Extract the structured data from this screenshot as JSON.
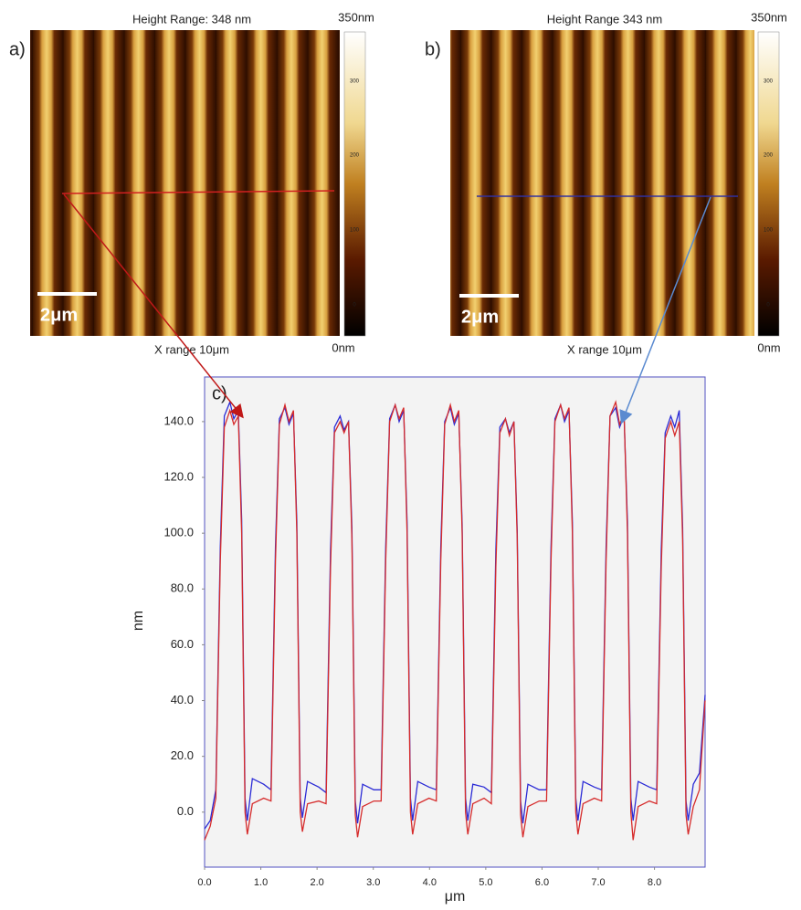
{
  "figures": [
    {
      "label": "a)",
      "title": "Height Range: 348 nm",
      "scale_bar": "2μm",
      "x_range": "X range 10μm",
      "colorbar_top": "350nm",
      "colorbar_bottom": "0nm",
      "colorbar_ticks": [
        "300",
        "200",
        "100",
        "0"
      ]
    },
    {
      "label": "b)",
      "title": "Height Range 343 nm",
      "scale_bar": "2μm",
      "x_range": "X range 10μm",
      "colorbar_top": "350nm",
      "colorbar_bottom": "0nm",
      "colorbar_ticks": [
        "300",
        "200",
        "100",
        "0"
      ]
    }
  ],
  "chart_data": {
    "type": "line",
    "panel_label": "c)",
    "x_label": "μm",
    "y_label": "nm",
    "x": [
      0,
      0.1,
      0.2,
      0.28,
      0.35,
      0.45,
      0.52,
      0.6,
      0.66,
      0.72,
      0.76,
      0.85,
      1.05,
      1.18,
      1.26,
      1.33,
      1.43,
      1.5,
      1.58,
      1.64,
      1.7,
      1.74,
      1.83,
      2.03,
      2.16,
      2.24,
      2.31,
      2.41,
      2.48,
      2.56,
      2.62,
      2.68,
      2.72,
      2.81,
      3.01,
      3.14,
      3.22,
      3.29,
      3.39,
      3.46,
      3.54,
      3.6,
      3.66,
      3.7,
      3.79,
      3.99,
      4.12,
      4.2,
      4.27,
      4.37,
      4.44,
      4.52,
      4.58,
      4.64,
      4.68,
      4.77,
      4.97,
      5.1,
      5.18,
      5.25,
      5.35,
      5.42,
      5.5,
      5.56,
      5.62,
      5.66,
      5.75,
      5.95,
      6.08,
      6.16,
      6.23,
      6.33,
      6.4,
      6.48,
      6.54,
      6.6,
      6.64,
      6.73,
      6.93,
      7.06,
      7.14,
      7.21,
      7.31,
      7.38,
      7.46,
      7.52,
      7.58,
      7.62,
      7.71,
      7.91,
      8.04,
      8.12,
      8.19,
      8.29,
      8.36,
      8.44,
      8.5,
      8.56,
      8.6,
      8.69,
      8.8,
      8.9
    ],
    "series": [
      {
        "name": "b",
        "color": "#2b2bd6",
        "values": [
          -6,
          -3,
          8,
          95,
          142,
          147,
          141,
          144,
          105,
          5,
          -3,
          12,
          10,
          8,
          95,
          141,
          145,
          139,
          143,
          104,
          5,
          -2,
          11,
          9,
          7,
          94,
          138,
          142,
          137,
          140,
          102,
          4,
          -4,
          10,
          8,
          8,
          95,
          141,
          146,
          140,
          144,
          104,
          5,
          -3,
          11,
          9,
          8,
          95,
          140,
          145,
          139,
          143,
          103,
          5,
          -3,
          10,
          9,
          7,
          94,
          138,
          141,
          136,
          140,
          101,
          4,
          -4,
          10,
          8,
          8,
          95,
          141,
          146,
          140,
          144,
          104,
          5,
          -3,
          11,
          9,
          8,
          95,
          142,
          145,
          138,
          142,
          104,
          5,
          -3,
          11,
          9,
          8,
          94,
          136,
          142,
          138,
          144,
          102,
          4,
          -3,
          10,
          14,
          42
        ]
      },
      {
        "name": "a",
        "color": "#d62b2b",
        "values": [
          -10,
          -5,
          5,
          90,
          138,
          144,
          139,
          142,
          100,
          0,
          -8,
          3,
          5,
          4,
          90,
          139,
          146,
          140,
          144,
          100,
          0,
          -7,
          3,
          4,
          3,
          88,
          136,
          140,
          136,
          140,
          98,
          -1,
          -9,
          2,
          4,
          4,
          90,
          140,
          146,
          141,
          145,
          100,
          0,
          -8,
          3,
          5,
          4,
          90,
          139,
          146,
          140,
          144,
          100,
          0,
          -8,
          3,
          5,
          3,
          88,
          136,
          141,
          135,
          140,
          98,
          -1,
          -9,
          2,
          4,
          4,
          90,
          140,
          146,
          141,
          145,
          100,
          0,
          -8,
          3,
          5,
          4,
          90,
          142,
          147,
          139,
          143,
          100,
          0,
          -10,
          2,
          4,
          3,
          88,
          134,
          140,
          135,
          140,
          98,
          -1,
          -8,
          2,
          8,
          40
        ]
      }
    ],
    "xlim": [
      0,
      8.9
    ],
    "ylim": [
      -19.7,
      156
    ],
    "xticks": [
      {
        "value": 0,
        "label": "0.0"
      },
      {
        "value": 1,
        "label": "1.0"
      },
      {
        "value": 2,
        "label": "2.0"
      },
      {
        "value": 3,
        "label": "3.0"
      },
      {
        "value": 4,
        "label": "4.0"
      },
      {
        "value": 5,
        "label": "5.0"
      },
      {
        "value": 6,
        "label": "6.0"
      },
      {
        "value": 7,
        "label": "7.0"
      },
      {
        "value": 8,
        "label": "8.0"
      }
    ],
    "yticks": [
      {
        "value": 0,
        "label": "0.0"
      },
      {
        "value": 20,
        "label": "20.0"
      },
      {
        "value": 40,
        "label": "40.0"
      },
      {
        "value": 60,
        "label": "60.0"
      },
      {
        "value": 80,
        "label": "80.0"
      },
      {
        "value": 100,
        "label": "100.0"
      },
      {
        "value": 120,
        "label": "120.0"
      },
      {
        "value": 140,
        "label": "140.0"
      }
    ]
  }
}
